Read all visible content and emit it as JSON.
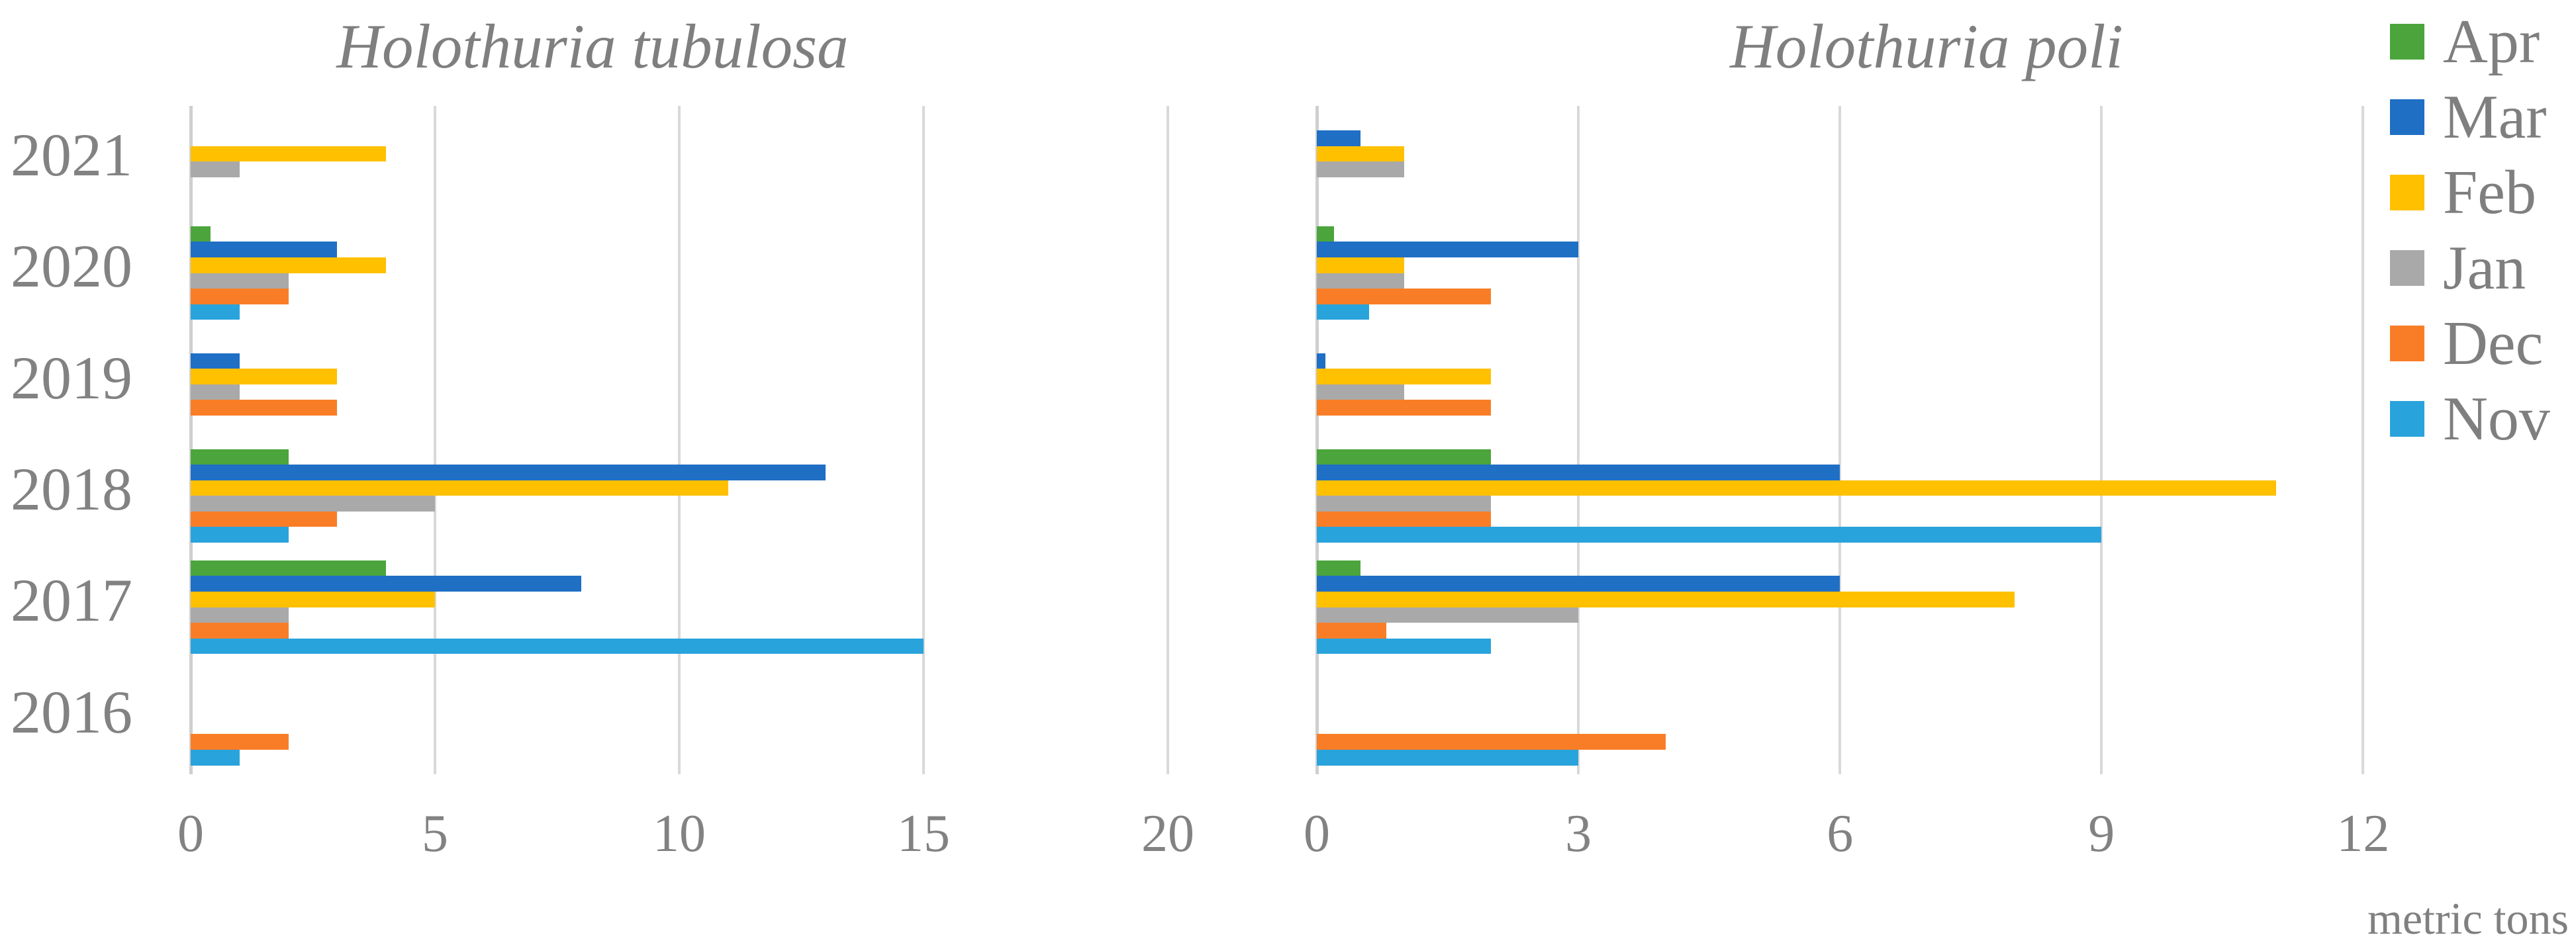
{
  "axis_note": "metric tons",
  "legend": {
    "items": [
      {
        "label": "Apr",
        "color": "#4ba53c"
      },
      {
        "label": "Mar",
        "color": "#1f6fc5"
      },
      {
        "label": "Feb",
        "color": "#ffc000"
      },
      {
        "label": "Jan",
        "color": "#a9a9a9"
      },
      {
        "label": "Dec",
        "color": "#f97d27"
      },
      {
        "label": "Nov",
        "color": "#29a3db"
      }
    ]
  },
  "chart_data": [
    {
      "type": "bar",
      "orientation": "horizontal",
      "title": "Holothuria tubulosa",
      "unit_label": "metric tons",
      "categories": [
        "2021",
        "2020",
        "2019",
        "2018",
        "2017",
        "2016"
      ],
      "xticks": [
        0,
        5,
        10,
        15,
        20
      ],
      "xlim": [
        0,
        20
      ],
      "grid": true,
      "legend_position": "top-right-shared",
      "series": [
        {
          "name": "Apr",
          "color": "#4ba53c",
          "values": [
            0,
            0.4,
            0,
            2,
            4,
            0
          ]
        },
        {
          "name": "Mar",
          "color": "#1f6fc5",
          "values": [
            0,
            3,
            1,
            13,
            8,
            0
          ]
        },
        {
          "name": "Feb",
          "color": "#ffc000",
          "values": [
            4,
            4,
            3,
            11,
            5,
            0
          ]
        },
        {
          "name": "Jan",
          "color": "#a9a9a9",
          "values": [
            1,
            2,
            1,
            5,
            2,
            0
          ]
        },
        {
          "name": "Dec",
          "color": "#f97d27",
          "values": [
            0,
            2,
            3,
            3,
            2,
            2
          ]
        },
        {
          "name": "Nov",
          "color": "#29a3db",
          "values": [
            0,
            1,
            0,
            2,
            15,
            1
          ]
        }
      ]
    },
    {
      "type": "bar",
      "orientation": "horizontal",
      "title": "Holothuria poli",
      "unit_label": "metric tons",
      "categories": [
        "2021",
        "2020",
        "2019",
        "2018",
        "2017",
        "2016"
      ],
      "xticks": [
        0,
        3,
        6,
        9,
        12
      ],
      "xlim": [
        0,
        12
      ],
      "grid": true,
      "legend_position": "top-right-shared",
      "series": [
        {
          "name": "Apr",
          "color": "#4ba53c",
          "values": [
            0,
            0.2,
            0,
            2,
            0.5,
            0
          ]
        },
        {
          "name": "Mar",
          "color": "#1f6fc5",
          "values": [
            0.5,
            3,
            0.1,
            6,
            6,
            0
          ]
        },
        {
          "name": "Feb",
          "color": "#ffc000",
          "values": [
            1,
            1,
            2,
            11,
            8,
            0
          ]
        },
        {
          "name": "Jan",
          "color": "#a9a9a9",
          "values": [
            1,
            1,
            1,
            2,
            3,
            0
          ]
        },
        {
          "name": "Dec",
          "color": "#f97d27",
          "values": [
            0,
            2,
            2,
            2,
            0.8,
            4
          ]
        },
        {
          "name": "Nov",
          "color": "#29a3db",
          "values": [
            0,
            0.6,
            0,
            9,
            2,
            3
          ]
        }
      ]
    }
  ]
}
